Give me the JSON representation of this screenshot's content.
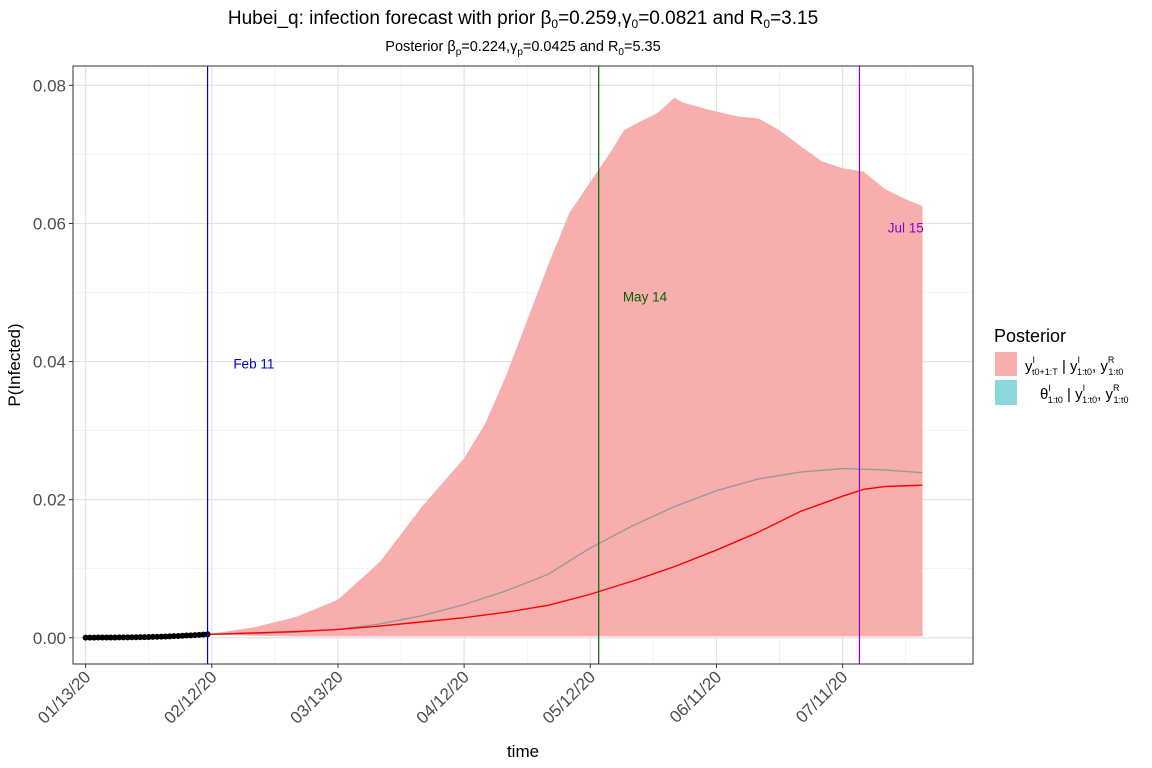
{
  "title": {
    "pre": "Hubei_q: infection forecast with prior ",
    "beta": "β",
    "beta_sub": "0",
    "beta_val": "=0.259,",
    "gamma": "γ",
    "gamma_sub": "0",
    "gamma_val": "=0.0821 and R",
    "r_sub": "0",
    "r_val": "=3.15"
  },
  "subtitle": {
    "pre": "Posterior ",
    "beta": "β",
    "beta_sub": "p",
    "beta_val": "=0.224,",
    "gamma": "γ",
    "gamma_sub": "p",
    "gamma_val": "=0.0425 and R",
    "r_sub": "0",
    "r_val": "=5.35"
  },
  "legend": {
    "title": "Posterior",
    "items": [
      {
        "color": "#f8aeac",
        "main": "y",
        "sup": "I",
        "sub": "t0+1:T",
        "rest1": " | y",
        "rest1_sup": "I",
        "rest1_sub": "1:t0",
        "rest2": ", y",
        "rest2_sup": "R",
        "rest2_sub": "1:t0"
      },
      {
        "color": "#8dd8da",
        "main": "θ",
        "sup": "I",
        "sub": "1:t0",
        "rest1": " | y",
        "rest1_sup": "I",
        "rest1_sub": "1:t0",
        "rest2": ", y",
        "rest2_sup": "R",
        "rest2_sub": "1:t0"
      }
    ]
  },
  "chart_data": {
    "type": "area",
    "xlabel": "time",
    "ylabel": "P(Infected)",
    "x_range_days": [
      -3,
      211
    ],
    "ylim": [
      -0.0038,
      0.0828
    ],
    "x_ticks": [
      {
        "day": 0,
        "label": "01/13/20"
      },
      {
        "day": 30,
        "label": "02/12/20"
      },
      {
        "day": 60,
        "label": "03/13/20"
      },
      {
        "day": 90,
        "label": "04/12/20"
      },
      {
        "day": 120,
        "label": "05/12/20"
      },
      {
        "day": 150,
        "label": "06/11/20"
      },
      {
        "day": 180,
        "label": "07/11/20"
      }
    ],
    "y_ticks": [
      0.0,
      0.02,
      0.04,
      0.06,
      0.08
    ],
    "y_tick_labels": [
      "0.00",
      "0.02",
      "0.04",
      "0.06",
      "0.08"
    ],
    "vlines": [
      {
        "day": 29,
        "color": "#0000cc",
        "label": "Feb 11",
        "label_day": 40,
        "label_y": 0.039
      },
      {
        "day": 122,
        "color": "#006400",
        "label": "May 14",
        "label_day": 133,
        "label_y": 0.0487
      },
      {
        "day": 184,
        "color": "#9400d3",
        "label": "Jul 15",
        "label_day": 195,
        "label_y": 0.0587
      }
    ],
    "observed_points": {
      "color": "#000000",
      "days": [
        0,
        1,
        2,
        3,
        4,
        5,
        6,
        7,
        8,
        9,
        10,
        11,
        12,
        13,
        14,
        15,
        16,
        17,
        18,
        19,
        20,
        21,
        22,
        23,
        24,
        25,
        26,
        27,
        28,
        29
      ],
      "values": [
        2e-05,
        2e-05,
        2e-05,
        3e-05,
        3e-05,
        3e-05,
        4e-05,
        4e-05,
        5e-05,
        5e-05,
        6e-05,
        7e-05,
        8e-05,
        9e-05,
        0.0001,
        0.00011,
        0.00012,
        0.00014,
        0.00016,
        0.00018,
        0.0002,
        0.00023,
        0.00026,
        0.00029,
        0.00032,
        0.00035,
        0.00038,
        0.00042,
        0.00046,
        0.0005
      ]
    },
    "band": {
      "name": "y_t0+1:T | y_1:t0",
      "color": "#f8aeac",
      "days": [
        29,
        40,
        50,
        60,
        70,
        80,
        90,
        95,
        100,
        105,
        110,
        115,
        120,
        125,
        128,
        132,
        136,
        140,
        142,
        145,
        148,
        150,
        155,
        160,
        165,
        170,
        175,
        180,
        185,
        190,
        195,
        199
      ],
      "upper": [
        0.0005,
        0.0015,
        0.003,
        0.0055,
        0.011,
        0.019,
        0.026,
        0.031,
        0.038,
        0.046,
        0.054,
        0.0615,
        0.066,
        0.0705,
        0.0735,
        0.0748,
        0.076,
        0.0782,
        0.0775,
        0.077,
        0.0765,
        0.0762,
        0.0755,
        0.0752,
        0.0735,
        0.0712,
        0.069,
        0.068,
        0.0675,
        0.065,
        0.0635,
        0.0625
      ],
      "lower": [
        0.0005,
        0.0003,
        0.0002,
        0.0002,
        0.0002,
        0.0002,
        0.0002,
        0.0002,
        0.0002,
        0.0002,
        0.0002,
        0.0002,
        0.0002,
        0.0002,
        0.0002,
        0.0002,
        0.0002,
        0.0002,
        0.0002,
        0.0002,
        0.0002,
        0.0002,
        0.0002,
        0.0002,
        0.0002,
        0.0002,
        0.0002,
        0.0002,
        0.0002,
        0.0002,
        0.0002,
        0.0002
      ]
    },
    "median_line": {
      "color": "#ff0000",
      "days": [
        29,
        40,
        50,
        60,
        70,
        80,
        90,
        100,
        110,
        120,
        130,
        140,
        150,
        160,
        170,
        180,
        185,
        190,
        199
      ],
      "values": [
        0.0005,
        0.0007,
        0.0009,
        0.0012,
        0.0017,
        0.0023,
        0.0029,
        0.0037,
        0.0047,
        0.0063,
        0.0082,
        0.0103,
        0.0127,
        0.0153,
        0.0183,
        0.0205,
        0.0215,
        0.0219,
        0.0221
      ]
    },
    "prior_line": {
      "color": "#999999",
      "days": [
        29,
        40,
        50,
        60,
        70,
        80,
        90,
        100,
        110,
        120,
        130,
        140,
        150,
        160,
        170,
        180,
        190,
        199
      ],
      "values": [
        0.0005,
        0.0006,
        0.0008,
        0.0012,
        0.002,
        0.0032,
        0.0048,
        0.0068,
        0.0092,
        0.013,
        0.0162,
        0.019,
        0.0213,
        0.023,
        0.024,
        0.0245,
        0.0243,
        0.0239
      ]
    }
  }
}
